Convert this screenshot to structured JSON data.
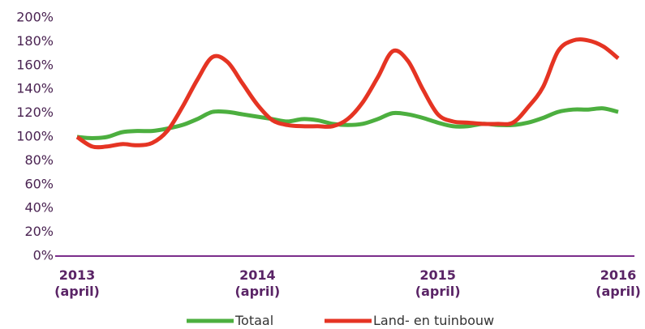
{
  "chart_data": {
    "type": "line",
    "categories": [
      "2013\n(april)",
      null,
      null,
      null,
      null,
      null,
      null,
      null,
      null,
      null,
      null,
      null,
      "2014\n(april)",
      null,
      null,
      null,
      null,
      null,
      null,
      null,
      null,
      null,
      null,
      null,
      "2015\n(april)",
      null,
      null,
      null,
      null,
      null,
      null,
      null,
      null,
      null,
      null,
      null,
      "2016\n(april)"
    ],
    "series": [
      {
        "name": "Totaal",
        "color": "#4caf3f",
        "values": [
          100,
          99,
          100,
          104,
          105,
          105,
          107,
          110,
          115,
          121,
          121,
          119,
          117,
          115,
          113,
          115,
          114,
          111,
          110,
          111,
          115,
          120,
          119,
          116,
          112,
          109,
          109,
          111,
          110,
          110,
          112,
          116,
          121,
          123,
          123,
          124,
          121
        ]
      },
      {
        "name": "Land- en tuinbouw",
        "color": "#e53423",
        "values": [
          100,
          92,
          92,
          94,
          93,
          95,
          105,
          125,
          148,
          167,
          163,
          145,
          127,
          114,
          110,
          109,
          109,
          109,
          115,
          129,
          150,
          172,
          164,
          140,
          119,
          113,
          112,
          111,
          111,
          112,
          125,
          142,
          172,
          181,
          181,
          176,
          166
        ]
      }
    ],
    "ylim": [
      0,
      200
    ],
    "yticks": [
      {
        "value": 0,
        "label": "0%"
      },
      {
        "value": 20,
        "label": "20%"
      },
      {
        "value": 40,
        "label": "40%"
      },
      {
        "value": 60,
        "label": "60%"
      },
      {
        "value": 80,
        "label": "80%"
      },
      {
        "value": 100,
        "label": "100%"
      },
      {
        "value": 120,
        "label": "120%"
      },
      {
        "value": 140,
        "label": "140%"
      },
      {
        "value": 160,
        "label": "160%"
      },
      {
        "value": 180,
        "label": "180%"
      },
      {
        "value": 200,
        "label": "200%"
      }
    ],
    "grid": false
  }
}
